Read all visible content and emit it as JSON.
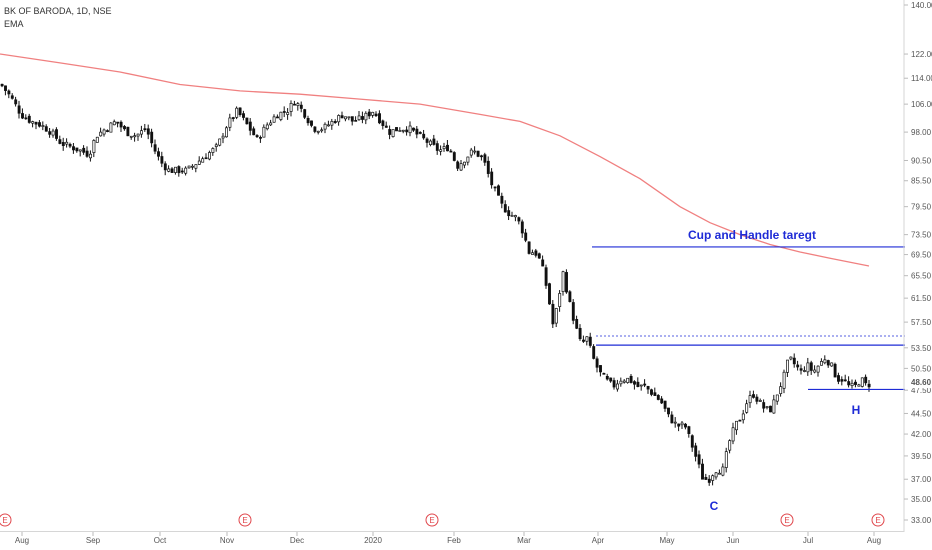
{
  "header": {
    "symbol": "BK OF BARODA, 1D, NSE",
    "indicator": "EMA"
  },
  "colors": {
    "background": "#ffffff",
    "candle": "#111111",
    "ema": "#f08080",
    "level_line": "#1e2bd6",
    "earnings": "#e0474c",
    "price_tag": "#000000"
  },
  "price_tag": "48.60",
  "annotations": {
    "target_label": "Cup and Handle taregt",
    "c_label": "C",
    "h_label": "H"
  },
  "earnings_label": "E",
  "chart_data": {
    "type": "candlestick",
    "title": "BK OF BARODA, 1D, NSE",
    "x_ticks": [
      "Aug",
      "Sep",
      "Oct",
      "Nov",
      "Dec",
      "2020",
      "Feb",
      "Mar",
      "Apr",
      "May",
      "Jun",
      "Jul",
      "Aug"
    ],
    "y_ticks": [
      "140.00",
      "122.00",
      "114.00",
      "106.00",
      "98.00",
      "90.50",
      "85.50",
      "79.50",
      "73.50",
      "69.50",
      "65.50",
      "61.50",
      "57.50",
      "53.50",
      "50.50",
      "47.50",
      "44.50",
      "42.00",
      "39.50",
      "37.00",
      "35.00",
      "33.00"
    ],
    "y_range": [
      33,
      140
    ],
    "y_scale": "log",
    "last_price": 48.6,
    "close_path": [
      [
        0,
        112
      ],
      [
        10,
        108
      ],
      [
        20,
        103
      ],
      [
        30,
        101
      ],
      [
        40,
        100
      ],
      [
        50,
        98
      ],
      [
        60,
        95
      ],
      [
        70,
        94
      ],
      [
        80,
        93
      ],
      [
        88,
        92
      ],
      [
        95,
        97
      ],
      [
        105,
        99
      ],
      [
        115,
        101
      ],
      [
        125,
        98
      ],
      [
        135,
        97
      ],
      [
        145,
        99
      ],
      [
        152,
        94
      ],
      [
        160,
        90
      ],
      [
        168,
        88
      ],
      [
        176,
        88
      ],
      [
        186,
        88
      ],
      [
        196,
        90
      ],
      [
        206,
        92
      ],
      [
        216,
        94
      ],
      [
        226,
        100
      ],
      [
        236,
        104
      ],
      [
        246,
        100
      ],
      [
        256,
        96
      ],
      [
        266,
        100
      ],
      [
        276,
        103
      ],
      [
        286,
        104
      ],
      [
        294,
        107
      ],
      [
        304,
        103
      ],
      [
        312,
        99
      ],
      [
        322,
        99
      ],
      [
        332,
        101
      ],
      [
        342,
        103
      ],
      [
        352,
        101
      ],
      [
        362,
        102
      ],
      [
        372,
        104
      ],
      [
        380,
        101
      ],
      [
        388,
        98
      ],
      [
        398,
        99
      ],
      [
        408,
        99
      ],
      [
        418,
        97
      ],
      [
        428,
        95
      ],
      [
        438,
        93
      ],
      [
        448,
        94
      ],
      [
        456,
        89
      ],
      [
        464,
        91
      ],
      [
        472,
        93
      ],
      [
        482,
        91
      ],
      [
        490,
        85
      ],
      [
        500,
        80
      ],
      [
        508,
        78
      ],
      [
        516,
        77
      ],
      [
        522,
        74
      ],
      [
        528,
        70
      ],
      [
        534,
        70
      ],
      [
        540,
        68
      ],
      [
        546,
        63
      ],
      [
        552,
        57
      ],
      [
        556,
        60
      ],
      [
        562,
        66
      ],
      [
        568,
        61
      ],
      [
        574,
        57
      ],
      [
        580,
        54
      ],
      [
        586,
        55
      ],
      [
        592,
        52
      ],
      [
        598,
        50
      ],
      [
        604,
        49
      ],
      [
        612,
        48
      ],
      [
        620,
        49
      ],
      [
        628,
        49
      ],
      [
        636,
        48
      ],
      [
        644,
        48
      ],
      [
        652,
        47
      ],
      [
        660,
        46
      ],
      [
        668,
        44
      ],
      [
        676,
        43
      ],
      [
        684,
        43
      ],
      [
        690,
        41
      ],
      [
        696,
        39
      ],
      [
        702,
        37
      ],
      [
        708,
        37
      ],
      [
        714,
        38
      ],
      [
        722,
        38
      ],
      [
        728,
        41
      ],
      [
        734,
        43
      ],
      [
        740,
        44
      ],
      [
        746,
        46
      ],
      [
        752,
        47
      ],
      [
        758,
        46
      ],
      [
        764,
        45
      ],
      [
        770,
        45
      ],
      [
        776,
        47
      ],
      [
        782,
        49
      ],
      [
        788,
        52
      ],
      [
        794,
        51
      ],
      [
        800,
        50
      ],
      [
        806,
        51
      ],
      [
        812,
        50
      ],
      [
        818,
        51
      ],
      [
        824,
        52
      ],
      [
        830,
        51
      ],
      [
        836,
        49
      ],
      [
        842,
        49
      ],
      [
        848,
        48
      ],
      [
        854,
        48
      ],
      [
        860,
        49
      ],
      [
        866,
        48
      ],
      [
        870,
        48.6
      ]
    ],
    "series": [
      {
        "name": "EMA",
        "points": [
          [
            0,
            122
          ],
          [
            60,
            119
          ],
          [
            120,
            116
          ],
          [
            180,
            112
          ],
          [
            240,
            110
          ],
          [
            300,
            109
          ],
          [
            360,
            107.5
          ],
          [
            420,
            106
          ],
          [
            480,
            103
          ],
          [
            520,
            101
          ],
          [
            560,
            97
          ],
          [
            600,
            91.5
          ],
          [
            640,
            86
          ],
          [
            680,
            79.5
          ],
          [
            710,
            76
          ],
          [
            740,
            73.5
          ],
          [
            770,
            71.5
          ],
          [
            800,
            70
          ],
          [
            830,
            68.8
          ],
          [
            869,
            67.3
          ]
        ]
      }
    ],
    "horizontal_lines": [
      {
        "price": 71.0,
        "from_x": 592,
        "to_x": 905,
        "label": "Cup and Handle taregt"
      },
      {
        "price": 55.3,
        "from_x": 596,
        "to_x": 905,
        "style": "dotted"
      },
      {
        "price": 53.9,
        "from_x": 596,
        "to_x": 905
      },
      {
        "price": 47.6,
        "from_x": 808,
        "to_x": 905
      }
    ],
    "earnings_markers_x": [
      5,
      245,
      432,
      787,
      878
    ]
  }
}
